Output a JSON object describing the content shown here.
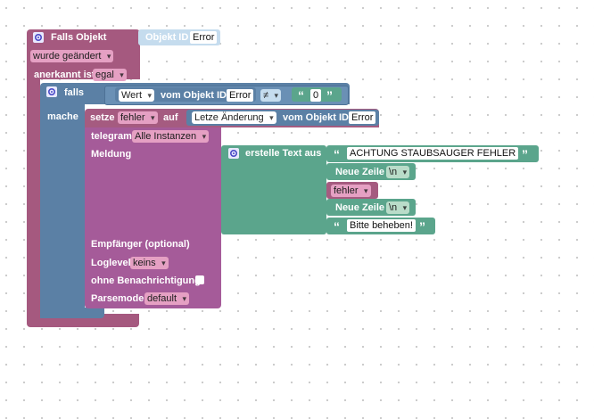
{
  "trigger": {
    "title": "Falls Objekt",
    "object_id_label": "Objekt ID",
    "object_id_value": "Error",
    "condition_value": "wurde geändert",
    "ack_label": "anerkannt ist",
    "ack_value": "egal"
  },
  "if_block": {
    "if_label": "falls",
    "do_label": "mache",
    "compare": {
      "value_label": "Wert",
      "from_id_label": "vom Objekt ID",
      "object_value": "Error",
      "operator": "≠",
      "text_value": "0"
    }
  },
  "set_block": {
    "set_label": "setze",
    "variable": "fehler",
    "to_label": "auf",
    "property_value": "Letze Änderung",
    "from_id_label": "vom Objekt ID",
    "object_value": "Error"
  },
  "telegram": {
    "label": "telegram",
    "instance_value": "Alle Instanzen",
    "message_label": "Meldung",
    "recipient_label": "Empfänger (optional)",
    "loglevel_label": "Loglevel",
    "loglevel_value": "keins",
    "silent_label": "ohne Benachrichtigung",
    "parsemode_label": "Parsemode",
    "parsemode_value": "default"
  },
  "text_join": {
    "label": "erstelle Text aus",
    "item1_text": "ACHTUNG STAUBSAUGER FEHLER",
    "newline_label": "Neue Zeile",
    "newline_value": "\\n",
    "variable": "fehler",
    "newline2_label": "Neue Zeile",
    "newline2_value": "\\n",
    "item2_text": "Bitte beheben!",
    "quote_open": "“",
    "quote_close": "”"
  },
  "colors": {
    "event_block": "#a5597f",
    "logic_block": "#5b80a5",
    "text_block": "#5ba58c",
    "object_block": "#5b80a5",
    "telegram_block": "#a55b99",
    "variable_block": "#a55b80"
  }
}
